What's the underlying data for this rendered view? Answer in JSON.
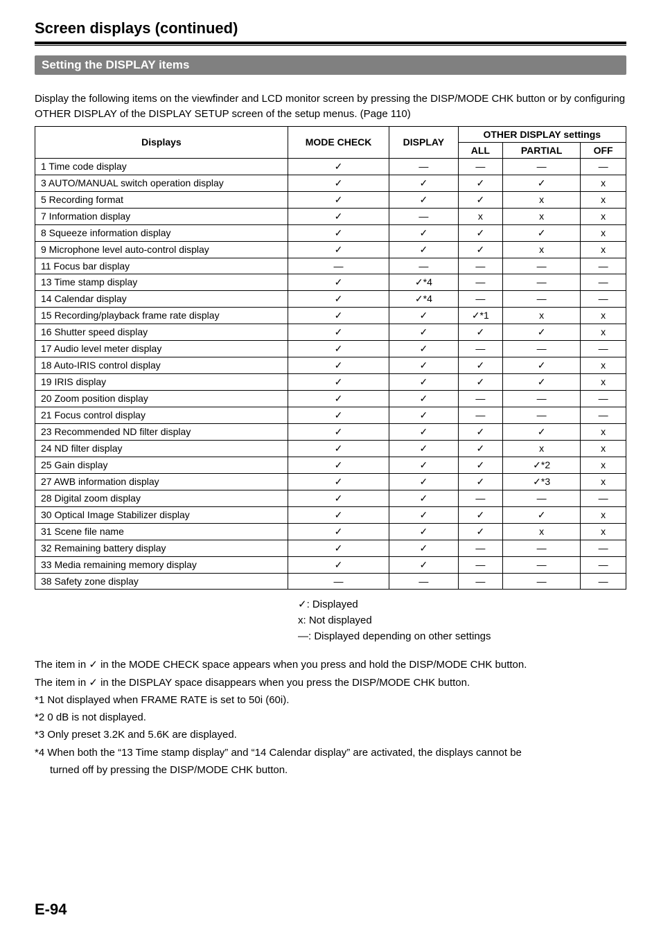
{
  "title": "Screen displays (continued)",
  "section": "Setting the DISPLAY items",
  "intro": "Display the following items on the viewfinder and LCD monitor screen by pressing the DISP/MODE CHK button or by configuring OTHER DISPLAY of the DISPLAY SETUP screen of the setup menus. (Page 110)",
  "headers": {
    "displays": "Displays",
    "mode_check": "MODE CHECK",
    "display": "DISPLAY",
    "other": "OTHER DISPLAY settings",
    "all": "ALL",
    "partial": "PARTIAL",
    "off": "OFF"
  },
  "symbols": {
    "check": "✓",
    "dash": "—",
    "x": "x",
    "check_s1": "✓*1",
    "check_s2": "✓*2",
    "check_s3": "✓*3",
    "check_s4": "✓*4"
  },
  "rows": [
    {
      "label": "1 Time code display",
      "mc": "check",
      "d": "dash",
      "all": "dash",
      "p": "dash",
      "off": "dash"
    },
    {
      "label": "3 AUTO/MANUAL switch operation display",
      "mc": "check",
      "d": "check",
      "all": "check",
      "p": "check",
      "off": "x"
    },
    {
      "label": "5 Recording format",
      "mc": "check",
      "d": "check",
      "all": "check",
      "p": "x",
      "off": "x"
    },
    {
      "label": "7 Information display",
      "mc": "check",
      "d": "dash",
      "all": "x",
      "p": "x",
      "off": "x"
    },
    {
      "label": "8 Squeeze information display",
      "mc": "check",
      "d": "check",
      "all": "check",
      "p": "check",
      "off": "x"
    },
    {
      "label": "9 Microphone level auto-control display",
      "mc": "check",
      "d": "check",
      "all": "check",
      "p": "x",
      "off": "x"
    },
    {
      "label": "11 Focus bar display",
      "mc": "dash",
      "d": "dash",
      "all": "dash",
      "p": "dash",
      "off": "dash"
    },
    {
      "label": "13 Time stamp display",
      "mc": "check",
      "d": "check_s4",
      "all": "dash",
      "p": "dash",
      "off": "dash"
    },
    {
      "label": "14 Calendar display",
      "mc": "check",
      "d": "check_s4",
      "all": "dash",
      "p": "dash",
      "off": "dash"
    },
    {
      "label": "15 Recording/playback frame rate display",
      "mc": "check",
      "d": "check",
      "all": "check_s1",
      "p": "x",
      "off": "x"
    },
    {
      "label": "16 Shutter speed display",
      "mc": "check",
      "d": "check",
      "all": "check",
      "p": "check",
      "off": "x"
    },
    {
      "label": "17 Audio level meter display",
      "mc": "check",
      "d": "check",
      "all": "dash",
      "p": "dash",
      "off": "dash"
    },
    {
      "label": "18 Auto-IRIS control display",
      "mc": "check",
      "d": "check",
      "all": "check",
      "p": "check",
      "off": "x"
    },
    {
      "label": "19 IRIS display",
      "mc": "check",
      "d": "check",
      "all": "check",
      "p": "check",
      "off": "x"
    },
    {
      "label": "20 Zoom position display",
      "mc": "check",
      "d": "check",
      "all": "dash",
      "p": "dash",
      "off": "dash"
    },
    {
      "label": "21 Focus control display",
      "mc": "check",
      "d": "check",
      "all": "dash",
      "p": "dash",
      "off": "dash"
    },
    {
      "label": "23 Recommended ND filter display",
      "mc": "check",
      "d": "check",
      "all": "check",
      "p": "check",
      "off": "x"
    },
    {
      "label": "24 ND filter display",
      "mc": "check",
      "d": "check",
      "all": "check",
      "p": "x",
      "off": "x"
    },
    {
      "label": "25 Gain display",
      "mc": "check",
      "d": "check",
      "all": "check",
      "p": "check_s2",
      "off": "x"
    },
    {
      "label": "27 AWB information display",
      "mc": "check",
      "d": "check",
      "all": "check",
      "p": "check_s3",
      "off": "x"
    },
    {
      "label": "28 Digital zoom display",
      "mc": "check",
      "d": "check",
      "all": "dash",
      "p": "dash",
      "off": "dash"
    },
    {
      "label": "30 Optical Image Stabilizer display",
      "mc": "check",
      "d": "check",
      "all": "check",
      "p": "check",
      "off": "x"
    },
    {
      "label": "31 Scene file name",
      "mc": "check",
      "d": "check",
      "all": "check",
      "p": "x",
      "off": "x"
    },
    {
      "label": "32 Remaining battery display",
      "mc": "check",
      "d": "check",
      "all": "dash",
      "p": "dash",
      "off": "dash"
    },
    {
      "label": "33 Media remaining memory display",
      "mc": "check",
      "d": "check",
      "all": "dash",
      "p": "dash",
      "off": "dash"
    },
    {
      "label": "38 Safety zone display",
      "mc": "dash",
      "d": "dash",
      "all": "dash",
      "p": "dash",
      "off": "dash"
    }
  ],
  "legend": {
    "l1": "✓: Displayed",
    "l2": "x: Not displayed",
    "l3": "—: Displayed depending on other settings"
  },
  "notes": {
    "n1": "The item in ✓ in the MODE CHECK space appears when you press and hold the DISP/MODE CHK button.",
    "n2": "The item in ✓ in the DISPLAY space disappears when you press the DISP/MODE CHK button.",
    "n3": "*1 Not displayed when FRAME RATE is set to 50i (60i).",
    "n4": "*2 0 dB is not displayed.",
    "n5": "*3 Only preset 3.2K and 5.6K are displayed.",
    "n6": "*4 When both the “13 Time stamp display” and “14 Calendar display” are activated, the displays cannot be",
    "n6b": "turned off by pressing the DISP/MODE CHK button."
  },
  "page_num": "E-94"
}
